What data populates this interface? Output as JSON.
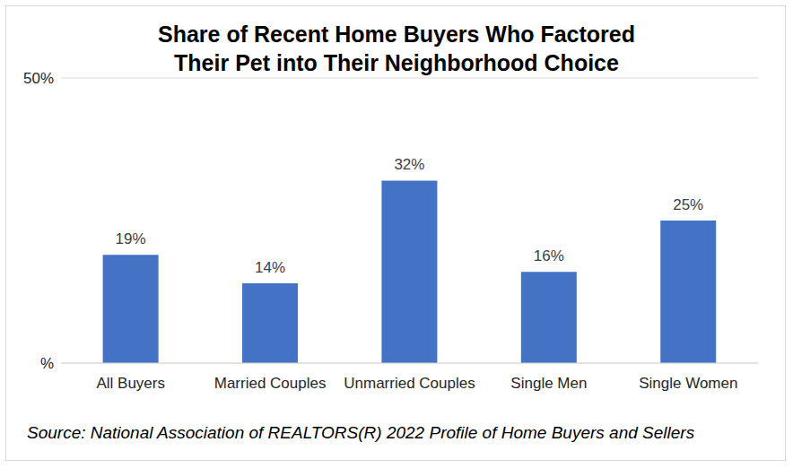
{
  "chart_data": {
    "type": "bar",
    "title": "Share of Recent Home Buyers Who Factored\nTheir Pet into Their Neighborhood Choice",
    "annotation": "Source: National Association of REALTORS(R) 2022 Profile of Home Buyers and Sellers",
    "categories": [
      "All Buyers",
      "Married Couples",
      "Unmarried Couples",
      "Single Men",
      "Single Women"
    ],
    "values": [
      19,
      14,
      32,
      16,
      25
    ],
    "value_labels": [
      "19%",
      "14%",
      "32%",
      "16%",
      "25%"
    ],
    "color": "#4472c4",
    "ylim": [
      0,
      50
    ],
    "yticks": [
      {
        "value": 0,
        "label": "%"
      },
      {
        "value": 50,
        "label": "50%"
      }
    ],
    "grid": true,
    "data_labels": true
  }
}
